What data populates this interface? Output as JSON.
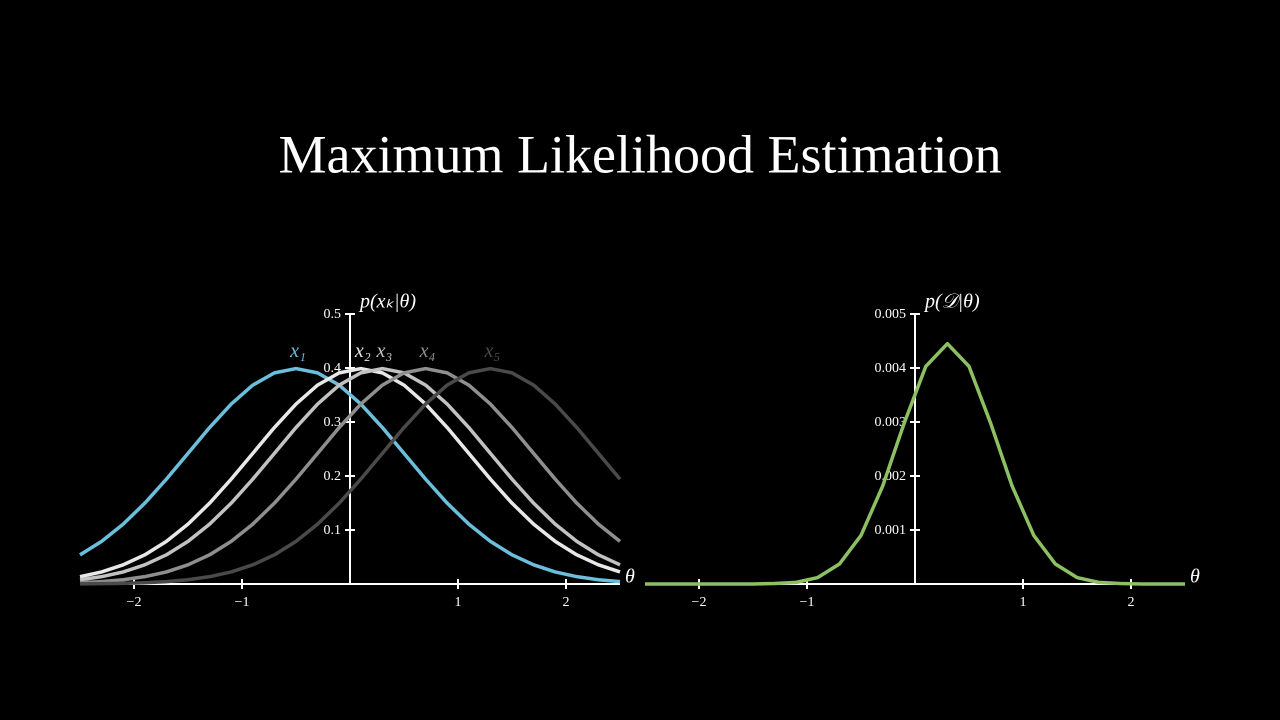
{
  "title": "Maximum Likelihood Estimation",
  "chart_data": [
    {
      "type": "line",
      "x_label": "θ",
      "y_label": "p(xₖ|θ)",
      "x": [
        -2.5,
        -2.3,
        -2.1,
        -1.9,
        -1.7,
        -1.5,
        -1.3,
        -1.1,
        -0.9,
        -0.7,
        -0.5,
        -0.3,
        -0.1,
        0.1,
        0.3,
        0.5,
        0.7,
        0.9,
        1.1,
        1.3,
        1.5,
        1.7,
        1.9,
        2.1,
        2.3,
        2.5
      ],
      "xlim": [
        -2.5,
        2.5
      ],
      "ylim": [
        0,
        0.5
      ],
      "xticks": [
        {
          "value": -2,
          "label": "−2"
        },
        {
          "value": -1,
          "label": "−1"
        },
        1,
        2
      ],
      "yticks": [
        0.1,
        0.2,
        0.3,
        0.4,
        0.5
      ],
      "series": [
        {
          "name": "x₁",
          "color": "#6bbfdc",
          "values": [
            0.054,
            0.079,
            0.1109,
            0.1497,
            0.1942,
            0.242,
            0.2897,
            0.3332,
            0.3683,
            0.391,
            0.3989,
            0.391,
            0.3683,
            0.3332,
            0.2897,
            0.242,
            0.1942,
            0.1497,
            0.1109,
            0.079,
            0.054,
            0.0355,
            0.0224,
            0.0136,
            0.0079,
            0.0044
          ]
        },
        {
          "name": "x₂",
          "color": "#e8e8e8",
          "values": [
            0.0136,
            0.0224,
            0.0355,
            0.054,
            0.079,
            0.1109,
            0.1497,
            0.1942,
            0.242,
            0.2897,
            0.3332,
            0.3683,
            0.391,
            0.3989,
            0.391,
            0.3683,
            0.3332,
            0.2897,
            0.242,
            0.1942,
            0.1497,
            0.1109,
            0.079,
            0.054,
            0.0355,
            0.0224
          ]
        },
        {
          "name": "x₃",
          "color": "#c2c2c2",
          "values": [
            0.0079,
            0.0136,
            0.0224,
            0.0355,
            0.054,
            0.079,
            0.1109,
            0.1497,
            0.1942,
            0.242,
            0.2897,
            0.3332,
            0.3683,
            0.391,
            0.3989,
            0.391,
            0.3683,
            0.3332,
            0.2897,
            0.242,
            0.1942,
            0.1497,
            0.1109,
            0.079,
            0.054,
            0.0355
          ]
        },
        {
          "name": "x₄",
          "color": "#8f8f8f",
          "values": [
            0.0024,
            0.0044,
            0.0079,
            0.0136,
            0.0224,
            0.0355,
            0.054,
            0.079,
            0.1109,
            0.1497,
            0.1942,
            0.242,
            0.2897,
            0.3332,
            0.3683,
            0.391,
            0.3989,
            0.391,
            0.3683,
            0.3332,
            0.2897,
            0.242,
            0.1942,
            0.1497,
            0.1109,
            0.079
          ]
        },
        {
          "name": "x₅",
          "color": "#4a4a4a",
          "values": [
            0.0003,
            0.0006,
            0.0012,
            0.0024,
            0.0044,
            0.0079,
            0.0136,
            0.0224,
            0.0355,
            0.054,
            0.079,
            0.1109,
            0.1497,
            0.1942,
            0.242,
            0.2897,
            0.3332,
            0.3683,
            0.391,
            0.3989,
            0.391,
            0.3683,
            0.3332,
            0.2897,
            0.242,
            0.1942
          ]
        }
      ]
    },
    {
      "type": "line",
      "x_label": "θ",
      "y_label": "p(𝒟|θ)",
      "x": [
        -2.5,
        -2.3,
        -2.1,
        -1.9,
        -1.7,
        -1.5,
        -1.3,
        -1.1,
        -0.9,
        -0.7,
        -0.5,
        -0.3,
        -0.1,
        0.1,
        0.3,
        0.5,
        0.7,
        0.9,
        1.1,
        1.3,
        1.5,
        1.7,
        1.9,
        2.1,
        2.3,
        2.5
      ],
      "xlim": [
        -2.5,
        2.5
      ],
      "ylim": [
        0,
        0.005
      ],
      "xticks": [
        {
          "value": -2,
          "label": "−2"
        },
        {
          "value": -1,
          "label": "−1"
        },
        1,
        2
      ],
      "yticks": [
        0.001,
        0.002,
        0.003,
        0.004,
        0.005
      ],
      "series": [
        {
          "color": "#8cc063",
          "values": [
            0,
            0,
            0,
            0,
            0,
            0,
            1e-05,
            3e-05,
            0.00012,
            0.00037,
            0.0009,
            0.00181,
            0.00298,
            0.00403,
            0.00445,
            0.00403,
            0.00298,
            0.00181,
            0.0009,
            0.00037,
            0.00012,
            3e-05,
            1e-05,
            0,
            0,
            0
          ]
        }
      ]
    }
  ]
}
